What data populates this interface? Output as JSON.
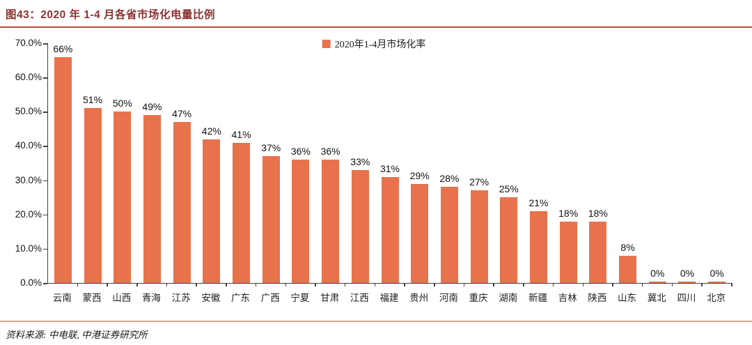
{
  "header": {
    "title": "图43：2020 年 1-4 月各省市场化电量比例"
  },
  "chart_data": {
    "type": "bar",
    "title": "2020 年 1-4 月各省市场化电量比例",
    "legend": "2020年1-4月市场化率",
    "legend_position": "top-center",
    "categories": [
      "云南",
      "蒙西",
      "山西",
      "青海",
      "江苏",
      "安徽",
      "广东",
      "广西",
      "宁夏",
      "甘肃",
      "江西",
      "福建",
      "贵州",
      "河南",
      "重庆",
      "湖南",
      "新疆",
      "吉林",
      "陕西",
      "山东",
      "冀北",
      "四川",
      "北京"
    ],
    "values": [
      66,
      51,
      50,
      49,
      47,
      42,
      41,
      37,
      36,
      36,
      33,
      31,
      29,
      28,
      27,
      25,
      21,
      18,
      18,
      8,
      0,
      0,
      0
    ],
    "value_labels": [
      "66%",
      "51%",
      "50%",
      "49%",
      "47%",
      "42%",
      "41%",
      "37%",
      "36%",
      "36%",
      "33%",
      "31%",
      "29%",
      "28%",
      "27%",
      "25%",
      "21%",
      "18%",
      "18%",
      "8%",
      "0%",
      "0%",
      "0%"
    ],
    "xlabel": "",
    "ylabel": "",
    "ylim": [
      0,
      70
    ],
    "y_ticks": [
      "70.0%",
      "60.0%",
      "50.0%",
      "40.0%",
      "30.0%",
      "20.0%",
      "10.0%",
      "0.0%"
    ],
    "grid": false,
    "bar_color": "#E8724C"
  },
  "footer": {
    "source": "资料来源: 中电联, 中港证券研究所"
  },
  "colors": {
    "bar": "#E8724C",
    "title_text": "#8C3432",
    "title_rule": "#B44A38",
    "footer_rule": "#E2A387",
    "axis": "#404040"
  }
}
